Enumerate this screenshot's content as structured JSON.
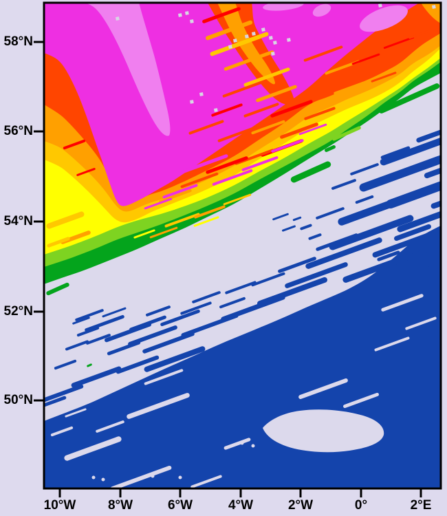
{
  "chart_data": {
    "type": "heatmap",
    "title": "",
    "x_tick_labels": [
      "10°W",
      "8°W",
      "6°W",
      "4°W",
      "2°W",
      "0°",
      "2°E"
    ],
    "y_tick_labels": [
      "58°N",
      "56°N",
      "54°N",
      "52°N",
      "50°N"
    ],
    "x_range": [
      "10.5°W",
      "2.7°E"
    ],
    "y_range": [
      "47.8°N",
      "58.9°N"
    ],
    "grid": "off",
    "legend": "none visible",
    "palette_low_to_high": [
      "#1444AC",
      "#DCD9EC",
      "#04A41C",
      "#7ED321",
      "#FFFF00",
      "#FFC800",
      "#FFA000",
      "#FF4500",
      "#FF0000",
      "#EE2FE2",
      "#F07FEF"
    ],
    "field_summary": "Filled contour field with maximum (magenta core containing lighter violet patches) in the north-west, concentric red/orange/amber/yellow/green bands wrapping it and running diagonally from lower-left to upper-right, a lavender minimum band across the middle, and a dark-blue region covering the south-east; thin NE-SW oriented streaks cut the transition zones and blue area; scattered light-grey missing-data specks lie along the crest near the top."
  },
  "palette": {
    "blue": "#1444AC",
    "lavender": "#DCD9EC",
    "green": "#04A41C",
    "yellowgreen": "#7ED321",
    "yellow": "#FFFF00",
    "amber": "#FFC800",
    "orange": "#FFA000",
    "orangered": "#FF4500",
    "red": "#FF0000",
    "magenta": "#EE2FE2",
    "violet": "#F07FEF",
    "speck": "#D8D6E4",
    "frame": "#000000",
    "page_bg": "#DEDAEE"
  }
}
